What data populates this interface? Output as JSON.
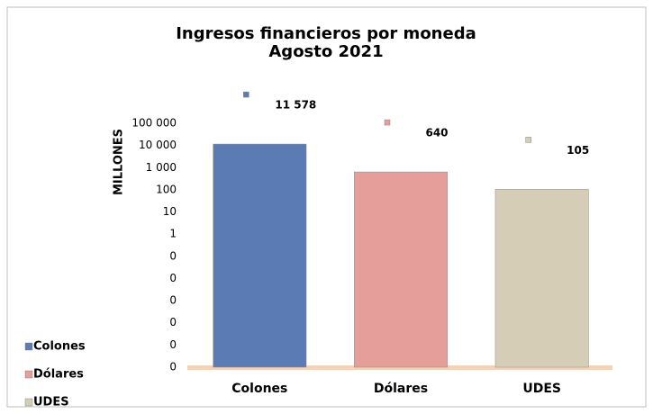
{
  "chart_data": {
    "type": "bar",
    "title": "Ingresos financieros por moneda",
    "subtitle": "Agosto 2021",
    "y_axis_label": "MILLONES",
    "categories": [
      "Colones",
      "Dólares",
      "UDES"
    ],
    "values": [
      11578,
      640,
      105
    ],
    "value_labels": [
      "11 578",
      "640",
      "105"
    ],
    "colors": [
      "#5b7bb5",
      "#e69e9a",
      "#d5cdb6"
    ],
    "log_scale": true,
    "ylim": [
      1e-06,
      100000
    ],
    "yticks": [
      {
        "value": 100000,
        "label": "100 000"
      },
      {
        "value": 10000,
        "label": "10 000"
      },
      {
        "value": 1000,
        "label": "1 000"
      },
      100,
      10,
      1,
      {
        "value": 0.1,
        "label": "0"
      },
      {
        "value": 0.01,
        "label": "0"
      },
      {
        "value": 0.001,
        "label": "0"
      },
      {
        "value": 0.0001,
        "label": "0"
      },
      {
        "value": 1e-05,
        "label": "0"
      },
      {
        "value": 1e-06,
        "label": "0"
      }
    ],
    "legend": "bottom-left"
  }
}
